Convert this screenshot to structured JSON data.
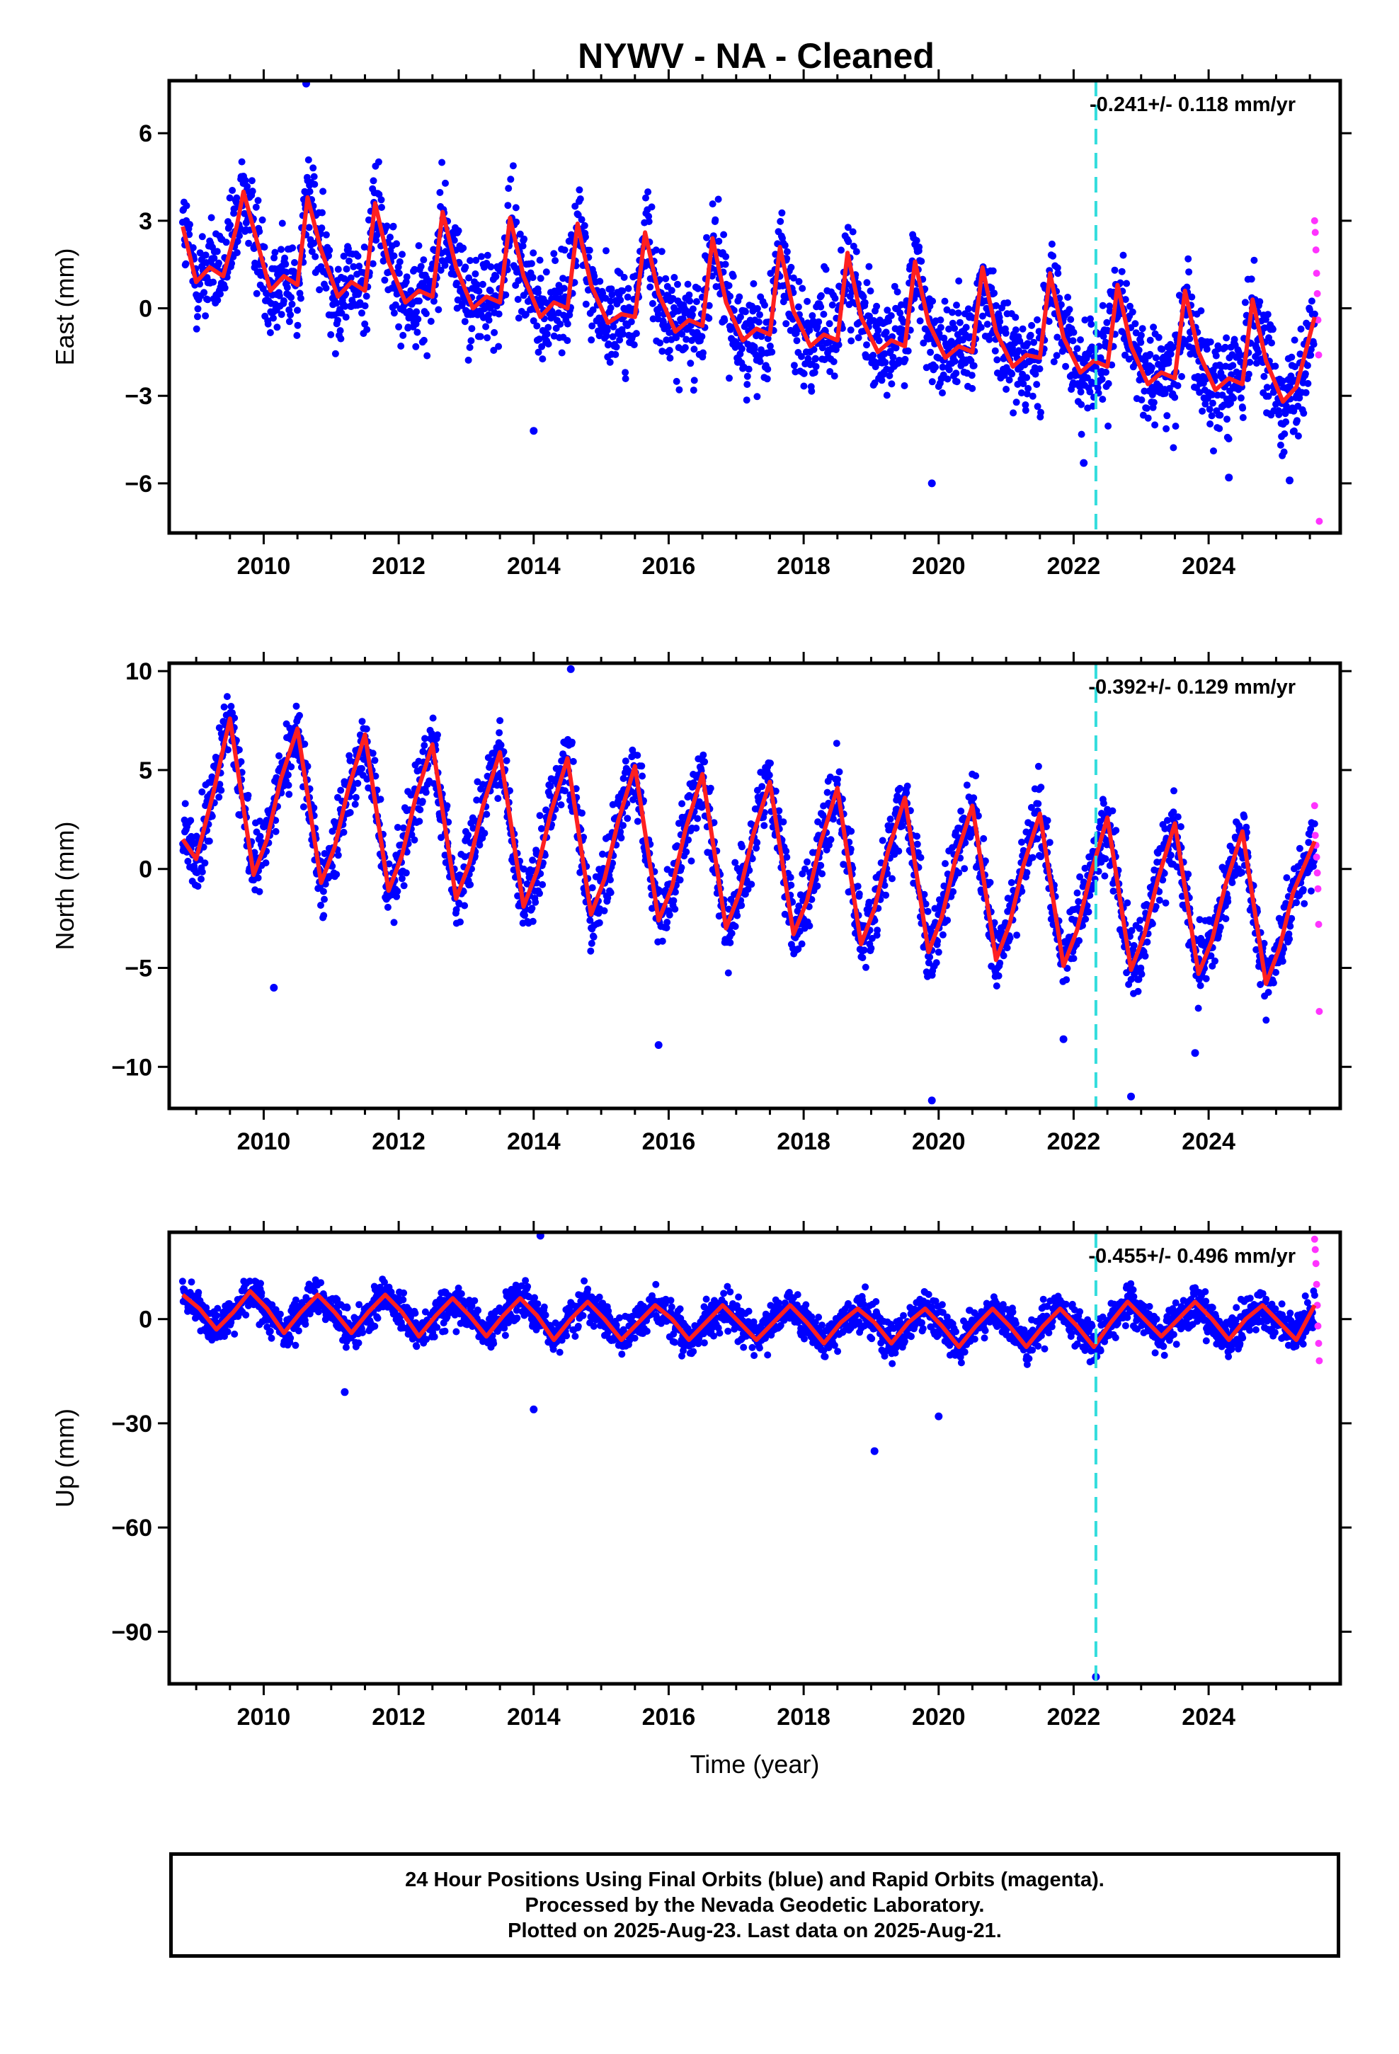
{
  "figure": {
    "title": "NYWV  - NA - Cleaned",
    "colors": {
      "final": "#0000ff",
      "rapid": "#ff33ff",
      "model": "#ff2020",
      "event": "#33dddd",
      "frame": "#000000"
    }
  },
  "chart_data": {
    "type": "scatter",
    "x_range": [
      2008.6,
      2025.95
    ],
    "x_ticks": [
      2010,
      2012,
      2014,
      2016,
      2018,
      2020,
      2022,
      2024
    ],
    "x_tick_labels": [
      "2010",
      "2012",
      "2014",
      "2016",
      "2018",
      "2020",
      "2022",
      "2024"
    ],
    "xlabel": "Time (year)",
    "data_start": 2008.8,
    "final_end": 2025.57,
    "rapid_range": [
      2025.57,
      2025.64
    ],
    "event_x": 2022.33,
    "panels": [
      {
        "name": "East",
        "ylabel": "East (mm)",
        "ylim": [
          -7.7,
          7.8
        ],
        "ticks": [
          -6,
          -3,
          0,
          3,
          6
        ],
        "tick_labels": [
          "−6",
          "−3",
          "0",
          "3",
          "6"
        ],
        "rate_label": "-0.241+/- 0.118 mm/yr",
        "model": {
          "x": [
            2008.8,
            2009.0,
            2009.2,
            2009.4,
            2009.6,
            2009.7,
            2009.9,
            2010.1,
            2010.3,
            2010.5,
            2010.65,
            2010.85,
            2011.1,
            2011.3,
            2011.5,
            2011.65,
            2011.85,
            2012.1,
            2012.3,
            2012.5,
            2012.65,
            2012.85,
            2013.1,
            2013.3,
            2013.5,
            2013.65,
            2013.85,
            2014.1,
            2014.3,
            2014.5,
            2014.65,
            2014.85,
            2015.1,
            2015.3,
            2015.5,
            2015.65,
            2015.85,
            2016.1,
            2016.3,
            2016.5,
            2016.65,
            2016.85,
            2017.1,
            2017.3,
            2017.5,
            2017.65,
            2017.85,
            2018.1,
            2018.3,
            2018.5,
            2018.65,
            2018.85,
            2019.1,
            2019.3,
            2019.5,
            2019.65,
            2019.85,
            2020.1,
            2020.3,
            2020.5,
            2020.65,
            2020.85,
            2021.1,
            2021.3,
            2021.5,
            2021.65,
            2021.85,
            2022.1,
            2022.3,
            2022.5,
            2022.65,
            2022.85,
            2023.1,
            2023.3,
            2023.5,
            2023.65,
            2023.85,
            2024.1,
            2024.3,
            2024.5,
            2024.65,
            2024.85,
            2025.1,
            2025.3,
            2025.57
          ],
          "y": [
            2.8,
            0.9,
            1.4,
            1.1,
            2.8,
            4.0,
            2.3,
            0.6,
            1.1,
            0.8,
            3.8,
            2.0,
            0.4,
            0.9,
            0.6,
            3.6,
            1.6,
            0.2,
            0.6,
            0.4,
            3.3,
            1.4,
            0.0,
            0.4,
            0.2,
            3.1,
            1.1,
            -0.3,
            0.2,
            0.0,
            2.9,
            0.8,
            -0.5,
            -0.2,
            -0.3,
            2.6,
            0.5,
            -0.8,
            -0.4,
            -0.6,
            2.4,
            0.2,
            -1.1,
            -0.7,
            -0.9,
            2.1,
            -0.1,
            -1.3,
            -0.9,
            -1.1,
            1.9,
            -0.3,
            -1.5,
            -1.1,
            -1.3,
            1.6,
            -0.5,
            -1.7,
            -1.3,
            -1.5,
            1.4,
            -0.8,
            -2.0,
            -1.6,
            -1.7,
            1.2,
            -1.0,
            -2.2,
            -1.8,
            -2.0,
            0.8,
            -1.3,
            -2.6,
            -2.2,
            -2.4,
            0.6,
            -1.5,
            -2.8,
            -2.4,
            -2.6,
            0.3,
            -1.8,
            -3.2,
            -2.7,
            -0.3
          ]
        },
        "noise": 1.4,
        "outliers": [
          [
            2010.63,
            7.7
          ],
          [
            2019.9,
            -6.0
          ],
          [
            2022.15,
            -5.3
          ],
          [
            2024.3,
            -5.8
          ],
          [
            2025.2,
            -5.9
          ],
          [
            2014.0,
            -4.2
          ]
        ],
        "rapid_y": [
          3.0,
          2.6,
          2.0,
          1.2,
          0.5,
          -0.4,
          -1.6,
          -7.3
        ]
      },
      {
        "name": "North",
        "ylabel": "North (mm)",
        "ylim": [
          -12.1,
          10.4
        ],
        "ticks": [
          -10,
          -5,
          0,
          5,
          10
        ],
        "tick_labels": [
          "−10",
          "−5",
          "0",
          "5",
          "10"
        ],
        "rate_label": "-0.392+/- 0.129 mm/yr",
        "model": {
          "x": [
            2008.8,
            2009.0,
            2009.25,
            2009.5,
            2009.85,
            2010.05,
            2010.25,
            2010.5,
            2010.85,
            2011.05,
            2011.25,
            2011.5,
            2011.85,
            2012.05,
            2012.25,
            2012.5,
            2012.85,
            2013.05,
            2013.25,
            2013.5,
            2013.85,
            2014.05,
            2014.25,
            2014.5,
            2014.85,
            2015.05,
            2015.25,
            2015.5,
            2015.85,
            2016.05,
            2016.25,
            2016.5,
            2016.85,
            2017.05,
            2017.25,
            2017.5,
            2017.85,
            2018.05,
            2018.25,
            2018.5,
            2018.85,
            2019.05,
            2019.25,
            2019.5,
            2019.85,
            2020.05,
            2020.25,
            2020.5,
            2020.85,
            2021.05,
            2021.25,
            2021.5,
            2021.85,
            2022.05,
            2022.25,
            2022.5,
            2022.85,
            2023.05,
            2023.25,
            2023.5,
            2023.85,
            2024.05,
            2024.25,
            2024.5,
            2024.85,
            2025.05,
            2025.25,
            2025.57
          ],
          "y": [
            1.5,
            0.5,
            3.8,
            7.6,
            -0.3,
            1.5,
            4.5,
            7.1,
            -0.7,
            1.1,
            4.0,
            6.8,
            -1.1,
            0.7,
            3.6,
            6.3,
            -1.5,
            0.3,
            3.2,
            5.9,
            -1.9,
            -0.1,
            2.8,
            5.6,
            -2.3,
            -0.5,
            2.4,
            5.2,
            -2.6,
            -0.9,
            2.0,
            4.8,
            -3.0,
            -1.2,
            1.7,
            4.4,
            -3.3,
            -1.6,
            1.3,
            4.1,
            -3.8,
            -2.0,
            0.9,
            3.6,
            -4.2,
            -2.4,
            0.5,
            3.2,
            -4.6,
            -2.8,
            0.1,
            2.8,
            -4.9,
            -3.1,
            -0.3,
            2.6,
            -5.1,
            -3.3,
            -0.5,
            2.3,
            -5.3,
            -3.6,
            -0.8,
            1.9,
            -5.8,
            -4.0,
            -1.2,
            1.4
          ]
        },
        "noise": 1.5,
        "outliers": [
          [
            2014.55,
            10.1
          ],
          [
            2019.9,
            -11.7
          ],
          [
            2022.85,
            -11.5
          ],
          [
            2015.85,
            -8.9
          ],
          [
            2021.85,
            -8.6
          ],
          [
            2023.8,
            -9.3
          ],
          [
            2010.15,
            -6.0
          ]
        ],
        "rapid_y": [
          3.2,
          1.7,
          1.2,
          0.6,
          -0.2,
          -1.0,
          -2.8,
          -7.2
        ]
      },
      {
        "name": "Up",
        "ylabel": "Up (mm)",
        "ylim": [
          -105,
          25
        ],
        "ticks": [
          -90,
          -60,
          -30,
          0
        ],
        "tick_labels": [
          "−90",
          "−60",
          "−30",
          "0"
        ],
        "rate_label": "-0.455+/- 0.496 mm/yr",
        "model": {
          "x": [
            2008.8,
            2009.05,
            2009.3,
            2009.55,
            2009.8,
            2010.05,
            2010.3,
            2010.55,
            2010.8,
            2011.05,
            2011.3,
            2011.55,
            2011.8,
            2012.05,
            2012.3,
            2012.55,
            2012.8,
            2013.05,
            2013.3,
            2013.55,
            2013.8,
            2014.05,
            2014.3,
            2014.55,
            2014.8,
            2015.05,
            2015.3,
            2015.55,
            2015.8,
            2016.05,
            2016.3,
            2016.55,
            2016.8,
            2017.05,
            2017.3,
            2017.55,
            2017.8,
            2018.05,
            2018.3,
            2018.55,
            2018.8,
            2019.05,
            2019.3,
            2019.55,
            2019.8,
            2020.05,
            2020.3,
            2020.55,
            2020.8,
            2021.05,
            2021.3,
            2021.55,
            2021.8,
            2022.05,
            2022.3,
            2022.55,
            2022.8,
            2023.05,
            2023.3,
            2023.55,
            2023.8,
            2024.05,
            2024.3,
            2024.55,
            2024.8,
            2025.05,
            2025.3,
            2025.57
          ],
          "y": [
            7,
            3,
            -3,
            2,
            8,
            3,
            -4,
            2,
            7,
            2,
            -4,
            2,
            7,
            2,
            -5,
            1,
            6,
            1,
            -5,
            1,
            6,
            1,
            -6,
            0,
            5,
            0,
            -6,
            -1,
            4,
            0,
            -6,
            -1,
            4,
            -1,
            -6,
            -1,
            4,
            -1,
            -7,
            -1,
            3,
            -1,
            -7,
            -1,
            3,
            -2,
            -8,
            -2,
            3,
            -2,
            -8,
            -2,
            3,
            -2,
            -8,
            -1,
            5,
            0,
            -5,
            0,
            5,
            0,
            -6,
            0,
            4,
            -1,
            -6,
            4
          ]
        },
        "noise": 4.5,
        "outliers": [
          [
            2014.1,
            24
          ],
          [
            2019.05,
            -38
          ],
          [
            2011.2,
            -21
          ],
          [
            2014.0,
            -26
          ],
          [
            2020.0,
            -28
          ],
          [
            2022.33,
            -103
          ]
        ],
        "rapid_y": [
          23,
          20,
          16,
          10,
          4,
          -2,
          -7,
          -12
        ]
      }
    ]
  },
  "footer": {
    "line1": "24 Hour Positions Using Final Orbits (blue) and Rapid Orbits (magenta).",
    "line2": "Processed by the Nevada Geodetic Laboratory.",
    "line3": "Plotted on 2025-Aug-23. Last data on 2025-Aug-21."
  }
}
